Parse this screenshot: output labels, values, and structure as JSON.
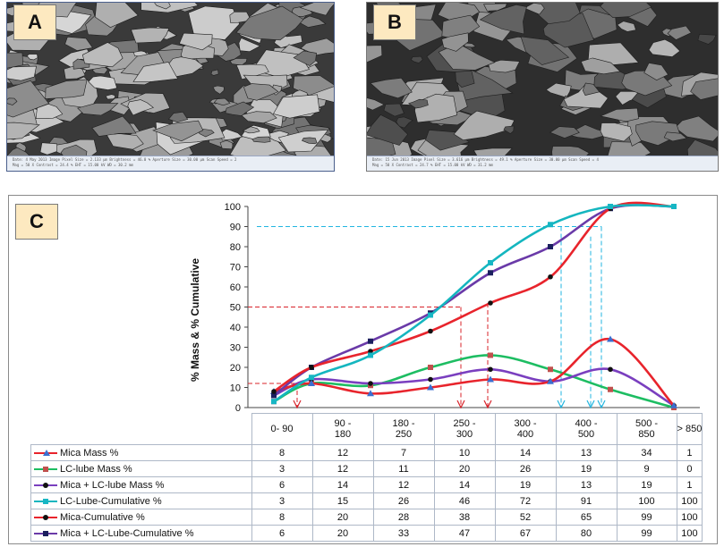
{
  "panels": {
    "a": {
      "label": "A",
      "bar_text": [
        "Date: 4 May 2013   Image Pixel Size = 2.133 µm   Brightness = 46.0 %   Aperture Size = 30.00 µm   Scan Speed = 2",
        "Mag = 50 X   Contrast = 24.4 %   EHT = 15.00 kV   WD = 30.2 mm"
      ]
    },
    "b": {
      "label": "B",
      "bar_text": [
        "Date: 15 Jun 2013   Image Pixel Size = 3.616 µm   Brightness = 49.1 %   Aperture Size = 30.00 µm   Scan Speed = 4",
        "Mag = 50 X   Contrast = 24.7 %   EHT = 15.00 kV   WD = 31.2 mm"
      ]
    },
    "c": {
      "label": "C"
    }
  },
  "colors": {
    "mica_mass": "#e8242c",
    "lc_mass": "#1dbd62",
    "mix_mass": "#7a3fbf",
    "lc_cum": "#14b6bf",
    "mica_cum": "#e8242c",
    "mix_cum": "#6a3aa8",
    "guide_red": "#d8232a",
    "guide_cyan": "#22b6e0"
  },
  "chart_data": {
    "type": "line",
    "ylabel": "% Mass & % Cumulative",
    "ylim": [
      0,
      100
    ],
    "yticks": [
      0,
      10,
      20,
      30,
      40,
      50,
      60,
      70,
      80,
      90,
      100
    ],
    "grid": false,
    "legend": "table-left",
    "categories": [
      "0- 90",
      "90 - 180",
      "180 - 250",
      "250 - 300",
      "300 - 400",
      "400 - 500",
      "500 - 850",
      "> 850"
    ],
    "series": [
      {
        "name": "Mica Mass %",
        "key": "mica_mass",
        "marker": "triangle",
        "values": [
          8,
          12,
          7,
          10,
          14,
          13,
          34,
          1
        ]
      },
      {
        "name": "LC-lube Mass %",
        "key": "lc_mass",
        "marker": "square",
        "values": [
          3,
          12,
          11,
          20,
          26,
          19,
          9,
          0
        ]
      },
      {
        "name": "Mica + LC-lube Mass %",
        "key": "mix_mass",
        "marker": "circle",
        "values": [
          6,
          14,
          12,
          14,
          19,
          13,
          19,
          1
        ]
      },
      {
        "name": "LC-Lube-Cumulative %",
        "key": "lc_cum",
        "marker": "square",
        "values": [
          3,
          15,
          26,
          46,
          72,
          91,
          100,
          100
        ]
      },
      {
        "name": "Mica-Cumulative %",
        "key": "mica_cum",
        "marker": "circle",
        "values": [
          8,
          20,
          28,
          38,
          52,
          65,
          99,
          100
        ]
      },
      {
        "name": "Mica + LC-Lube-Cumulative %",
        "key": "mix_cum",
        "marker": "square",
        "values": [
          6,
          20,
          33,
          47,
          67,
          80,
          99,
          100
        ]
      }
    ]
  }
}
